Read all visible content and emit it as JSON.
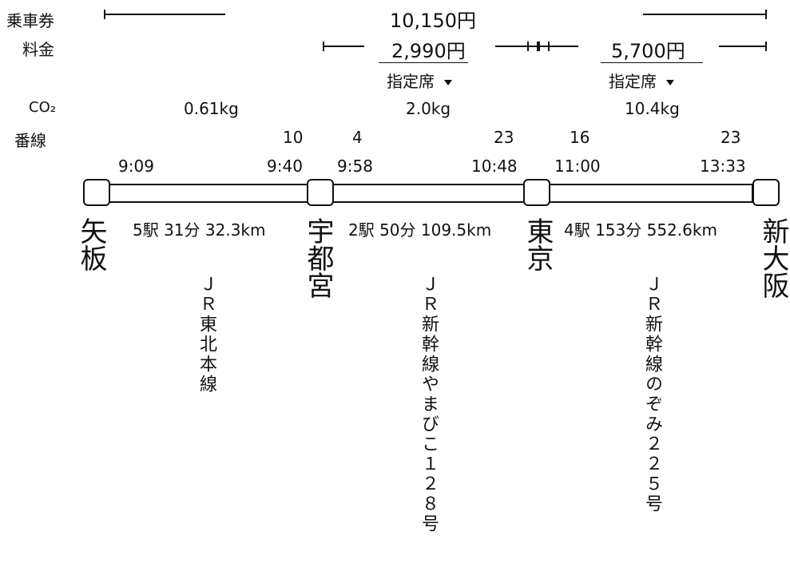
{
  "labels": {
    "ticket": "乗車券",
    "fare": "料金",
    "co2": "CO₂",
    "platform": "番線"
  },
  "ticket_total": "10,150円",
  "segments": [
    {
      "fare": "",
      "seat": "",
      "co2": "0.61kg",
      "dep_platform": "",
      "arr_platform": "10",
      "dep_time": "9:09",
      "arr_time": "9:40",
      "summary": "5駅 31分 32.3km",
      "line": "ＪＲ東北本線"
    },
    {
      "fare": "2,990円",
      "seat": "指定席",
      "co2": "2.0kg",
      "dep_platform": "4",
      "arr_platform": "23",
      "dep_time": "9:58",
      "arr_time": "10:48",
      "summary": "2駅 50分 109.5km",
      "line": "ＪＲ新幹線やまびこ１２８号"
    },
    {
      "fare": "5,700円",
      "seat": "指定席",
      "co2": "10.4kg",
      "dep_platform": "16",
      "arr_platform": "23",
      "dep_time": "11:00",
      "arr_time": "13:33",
      "summary": "4駅 153分 552.6km",
      "line": "ＪＲ新幹線のぞみ２２５号"
    }
  ],
  "stations": [
    "矢板",
    "宇都宮",
    "東京",
    "新大阪"
  ],
  "colors": {
    "ink": "#111111",
    "background": "#ffffff"
  }
}
